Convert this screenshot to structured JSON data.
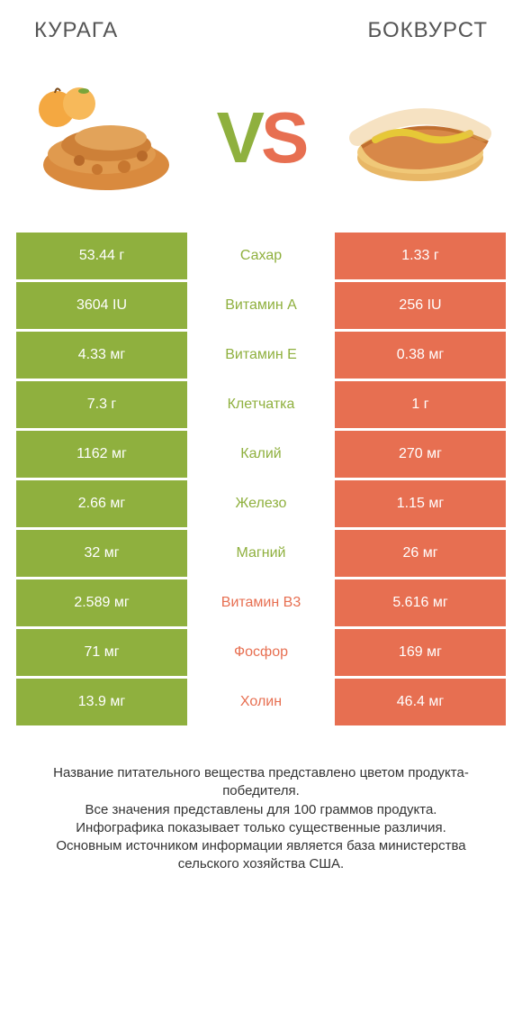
{
  "colors": {
    "left": "#8fb03e",
    "right": "#e76f51",
    "vs_v": "#8fb03e",
    "vs_s": "#e76f51",
    "bg": "#ffffff"
  },
  "titles": {
    "left": "КУРАГА",
    "right": "БОКВУРСТ"
  },
  "vs": {
    "v": "V",
    "s": "S"
  },
  "rows": [
    {
      "left": "53.44 г",
      "label": "Сахар",
      "right": "1.33 г",
      "winner": "left"
    },
    {
      "left": "3604 IU",
      "label": "Витамин A",
      "right": "256 IU",
      "winner": "left"
    },
    {
      "left": "4.33 мг",
      "label": "Витамин E",
      "right": "0.38 мг",
      "winner": "left"
    },
    {
      "left": "7.3 г",
      "label": "Клетчатка",
      "right": "1 г",
      "winner": "left"
    },
    {
      "left": "1162 мг",
      "label": "Калий",
      "right": "270 мг",
      "winner": "left"
    },
    {
      "left": "2.66 мг",
      "label": "Железо",
      "right": "1.15 мг",
      "winner": "left"
    },
    {
      "left": "32 мг",
      "label": "Магний",
      "right": "26 мг",
      "winner": "left"
    },
    {
      "left": "2.589 мг",
      "label": "Витамин B3",
      "right": "5.616 мг",
      "winner": "right"
    },
    {
      "left": "71 мг",
      "label": "Фосфор",
      "right": "169 мг",
      "winner": "right"
    },
    {
      "left": "13.9 мг",
      "label": "Холин",
      "right": "46.4 мг",
      "winner": "right"
    }
  ],
  "footer": {
    "l1": "Название питательного вещества представлено цветом продукта-победителя.",
    "l2": "Все значения представлены для 100 граммов продукта.",
    "l3": "Инфографика показывает только существенные различия.",
    "l4": "Основным источником информации является база министерства сельского хозяйства США."
  }
}
